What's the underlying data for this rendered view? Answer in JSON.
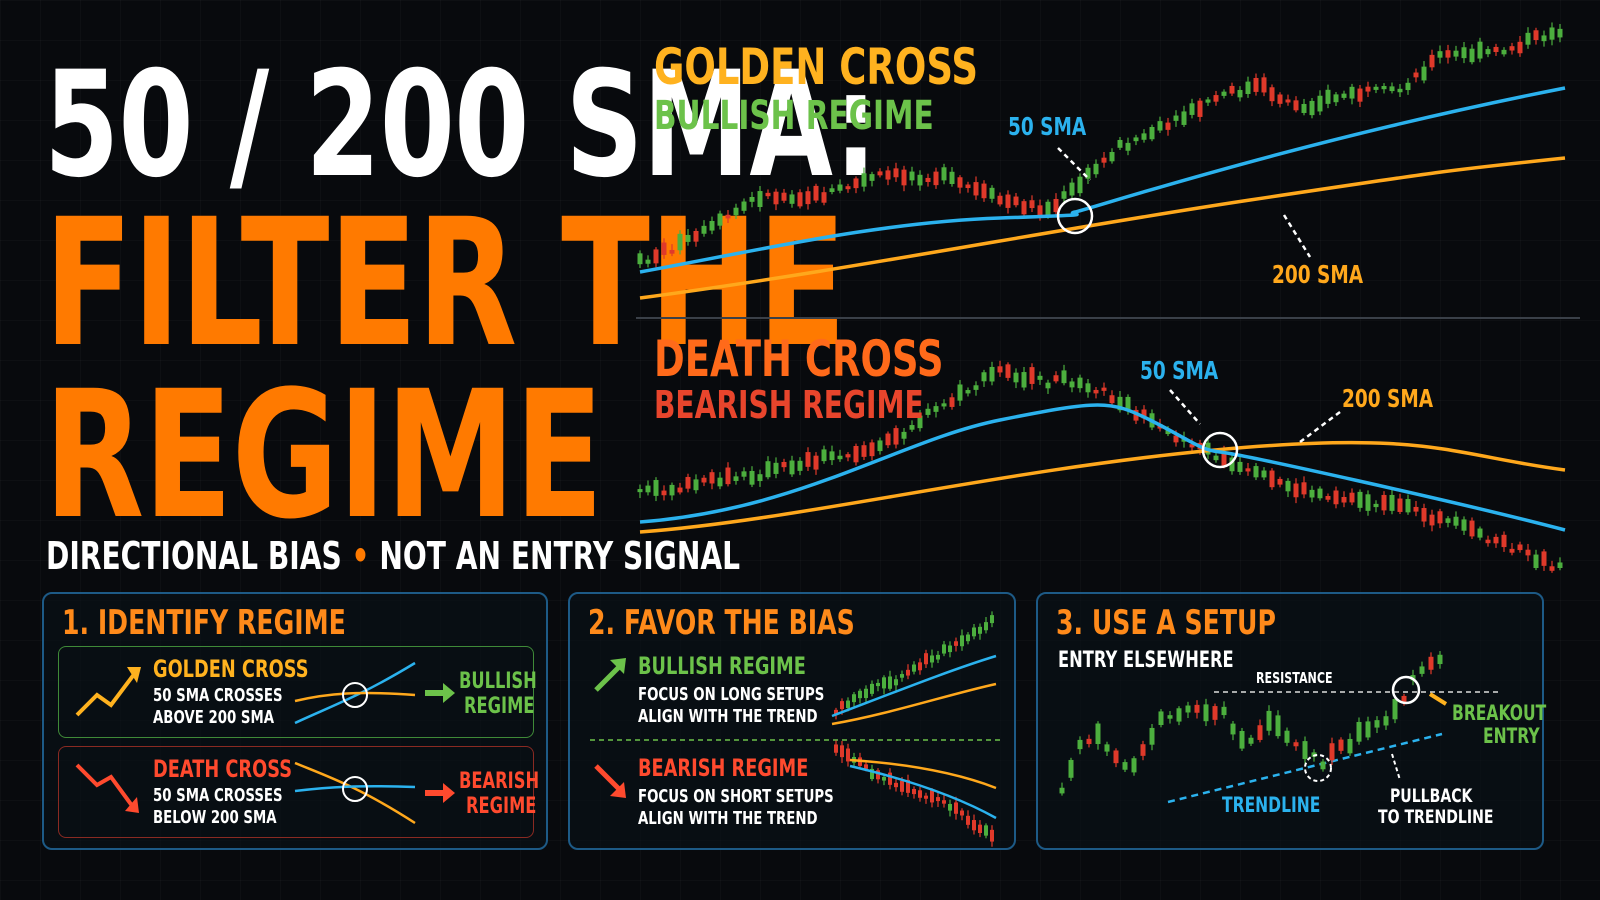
{
  "headline": {
    "line1": "50 / 200 SMA:",
    "line2": "FILTER THE",
    "line3": "REGIME"
  },
  "subtitle": {
    "left": "DIRECTIONAL BIAS",
    "separator": "•",
    "right": "NOT AN ENTRY SIGNAL"
  },
  "golden_cross_chart": {
    "title": "GOLDEN CROSS",
    "subtitle": "BULLISH REGIME",
    "fast_label": "50 SMA",
    "slow_label": "200 SMA"
  },
  "death_cross_chart": {
    "title": "DEATH CROSS",
    "subtitle": "BEARISH REGIME",
    "fast_label": "50 SMA",
    "slow_label": "200 SMA"
  },
  "panel1": {
    "title": "1. IDENTIFY REGIME",
    "golden": {
      "title": "GOLDEN CROSS",
      "line1": "50 SMA CROSSES",
      "line2": "ABOVE 200 SMA",
      "result1": "BULLISH",
      "result2": "REGIME"
    },
    "death": {
      "title": "DEATH CROSS",
      "line1": "50 SMA CROSSES",
      "line2": "BELOW 200 SMA",
      "result1": "BEARISH",
      "result2": "REGIME"
    }
  },
  "panel2": {
    "title": "2. FAVOR THE BIAS",
    "bull": {
      "title": "BULLISH REGIME",
      "line1": "FOCUS ON LONG SETUPS",
      "line2": "ALIGN WITH THE TREND"
    },
    "bear": {
      "title": "BEARISH REGIME",
      "line1": "FOCUS ON SHORT SETUPS",
      "line2": "ALIGN WITH THE TREND"
    }
  },
  "panel3": {
    "title": "3. USE A SETUP",
    "subtitle": "ENTRY ELSEWHERE",
    "resistance": "RESISTANCE",
    "trendline": "TRENDLINE",
    "breakout1": "BREAKOUT",
    "breakout2": "ENTRY",
    "pullback1": "PULLBACK",
    "pullback2": "TO TRENDLINE"
  },
  "colors": {
    "orange": "#ff7a00",
    "gold": "#ffb21f",
    "green": "#6cc24a",
    "red": "#e8452c",
    "blue": "#2bb2ee",
    "panel_border": "#1d5a86"
  }
}
